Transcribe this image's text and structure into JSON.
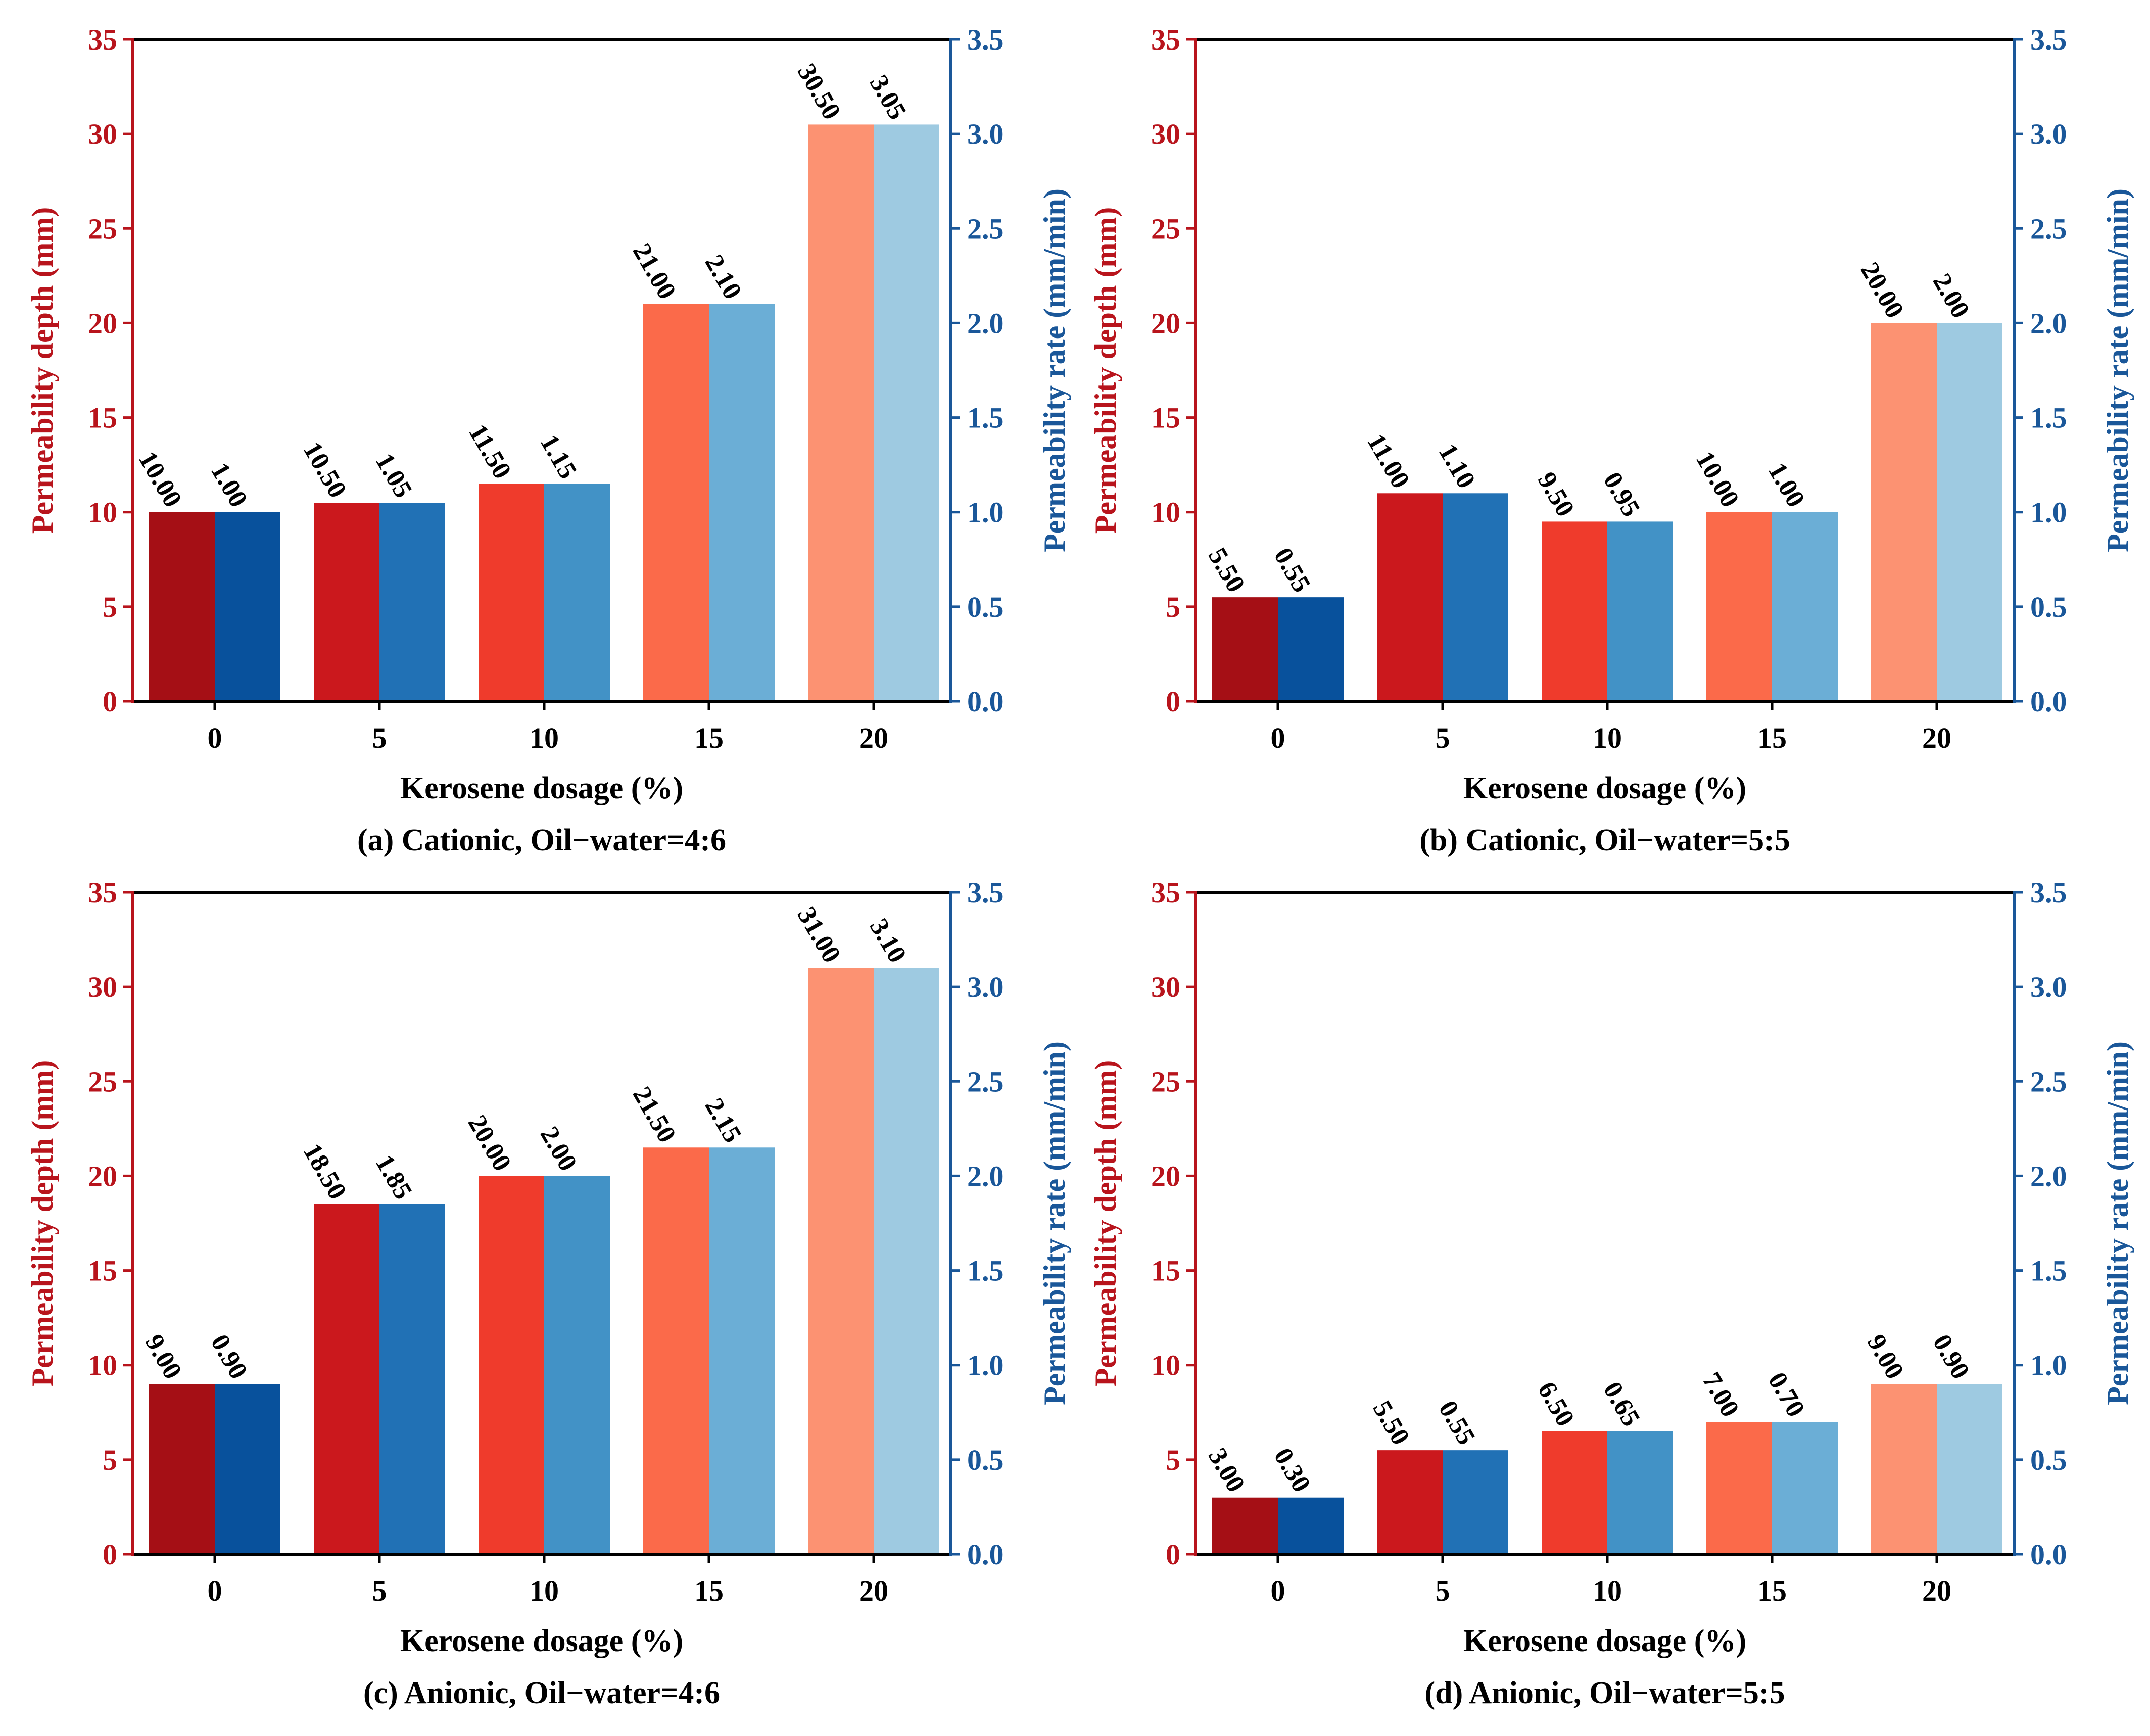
{
  "colors": {
    "left_axis": "#b8141c",
    "right_axis": "#1a5799",
    "red_bars": [
      "#a50f15",
      "#cb181d",
      "#ef3b2c",
      "#fb6a4a",
      "#fc9272"
    ],
    "blue_bars": [
      "#08519c",
      "#2171b5",
      "#4292c6",
      "#6baed6",
      "#9ecae1"
    ]
  },
  "chart_data": [
    {
      "type": "bar",
      "title": "(a) Cationic, Oil−water=4:6",
      "xlabel": "Kerosene dosage (%)",
      "ylabel_left": "Permeability depth (mm)",
      "ylabel_right": "Permeability rate (mm/min)",
      "categories": [
        "0",
        "5",
        "10",
        "15",
        "20"
      ],
      "ylim_left": [
        0,
        35
      ],
      "ylim_right": [
        0,
        3.5
      ],
      "yticks_left": [
        "0",
        "5",
        "10",
        "15",
        "20",
        "25",
        "30",
        "35"
      ],
      "yticks_right": [
        "0.0",
        "0.5",
        "1.0",
        "1.5",
        "2.0",
        "2.5",
        "3.0",
        "3.5"
      ],
      "series": [
        {
          "name": "Permeability depth",
          "axis": "left",
          "values": [
            10.0,
            10.5,
            11.5,
            21.0,
            30.5
          ],
          "labels": [
            "10.00",
            "10.50",
            "11.50",
            "21.00",
            "30.50"
          ]
        },
        {
          "name": "Permeability rate",
          "axis": "right",
          "values": [
            1.0,
            1.05,
            1.15,
            2.1,
            3.05
          ],
          "labels": [
            "1.00",
            "1.05",
            "1.15",
            "2.10",
            "3.05"
          ]
        }
      ]
    },
    {
      "type": "bar",
      "title": "(b) Cationic, Oil−water=5:5",
      "xlabel": "Kerosene dosage (%)",
      "ylabel_left": "Permeability depth (mm)",
      "ylabel_right": "Permeability rate (mm/min)",
      "categories": [
        "0",
        "5",
        "10",
        "15",
        "20"
      ],
      "ylim_left": [
        0,
        35
      ],
      "ylim_right": [
        0,
        3.5
      ],
      "yticks_left": [
        "0",
        "5",
        "10",
        "15",
        "20",
        "25",
        "30",
        "35"
      ],
      "yticks_right": [
        "0.0",
        "0.5",
        "1.0",
        "1.5",
        "2.0",
        "2.5",
        "3.0",
        "3.5"
      ],
      "series": [
        {
          "name": "Permeability depth",
          "axis": "left",
          "values": [
            5.5,
            11.0,
            9.5,
            10.0,
            20.0
          ],
          "labels": [
            "5.50",
            "11.00",
            "9.50",
            "10.00",
            "20.00"
          ]
        },
        {
          "name": "Permeability rate",
          "axis": "right",
          "values": [
            0.55,
            1.1,
            0.95,
            1.0,
            2.0
          ],
          "labels": [
            "0.55",
            "1.10",
            "0.95",
            "1.00",
            "2.00"
          ]
        }
      ]
    },
    {
      "type": "bar",
      "title": "(c) Anionic, Oil−water=4:6",
      "xlabel": "Kerosene dosage (%)",
      "ylabel_left": "Permeability depth (mm)",
      "ylabel_right": "Permeability rate (mm/min)",
      "categories": [
        "0",
        "5",
        "10",
        "15",
        "20"
      ],
      "ylim_left": [
        0,
        35
      ],
      "ylim_right": [
        0,
        3.5
      ],
      "yticks_left": [
        "0",
        "5",
        "10",
        "15",
        "20",
        "25",
        "30",
        "35"
      ],
      "yticks_right": [
        "0.0",
        "0.5",
        "1.0",
        "1.5",
        "2.0",
        "2.5",
        "3.0",
        "3.5"
      ],
      "series": [
        {
          "name": "Permeability depth",
          "axis": "left",
          "values": [
            9.0,
            18.5,
            20.0,
            21.5,
            31.0
          ],
          "labels": [
            "9.00",
            "18.50",
            "20.00",
            "21.50",
            "31.00"
          ]
        },
        {
          "name": "Permeability rate",
          "axis": "right",
          "values": [
            0.9,
            1.85,
            2.0,
            2.15,
            3.1
          ],
          "labels": [
            "0.90",
            "1.85",
            "2.00",
            "2.15",
            "3.10"
          ]
        }
      ]
    },
    {
      "type": "bar",
      "title": "(d) Anionic, Oil−water=5:5",
      "xlabel": "Kerosene dosage (%)",
      "ylabel_left": "Permeability depth (mm)",
      "ylabel_right": "Permeability rate (mm/min)",
      "categories": [
        "0",
        "5",
        "10",
        "15",
        "20"
      ],
      "ylim_left": [
        0,
        35
      ],
      "ylim_right": [
        0,
        3.5
      ],
      "yticks_left": [
        "0",
        "5",
        "10",
        "15",
        "20",
        "25",
        "30",
        "35"
      ],
      "yticks_right": [
        "0.0",
        "0.5",
        "1.0",
        "1.5",
        "2.0",
        "2.5",
        "3.0",
        "3.5"
      ],
      "series": [
        {
          "name": "Permeability depth",
          "axis": "left",
          "values": [
            3.0,
            5.5,
            6.5,
            7.0,
            9.0
          ],
          "labels": [
            "3.00",
            "5.50",
            "6.50",
            "7.00",
            "9.00"
          ]
        },
        {
          "name": "Permeability rate",
          "axis": "right",
          "values": [
            0.3,
            0.55,
            0.65,
            0.7,
            0.9
          ],
          "labels": [
            "0.30",
            "0.55",
            "0.65",
            "0.70",
            "0.90"
          ]
        }
      ]
    }
  ]
}
